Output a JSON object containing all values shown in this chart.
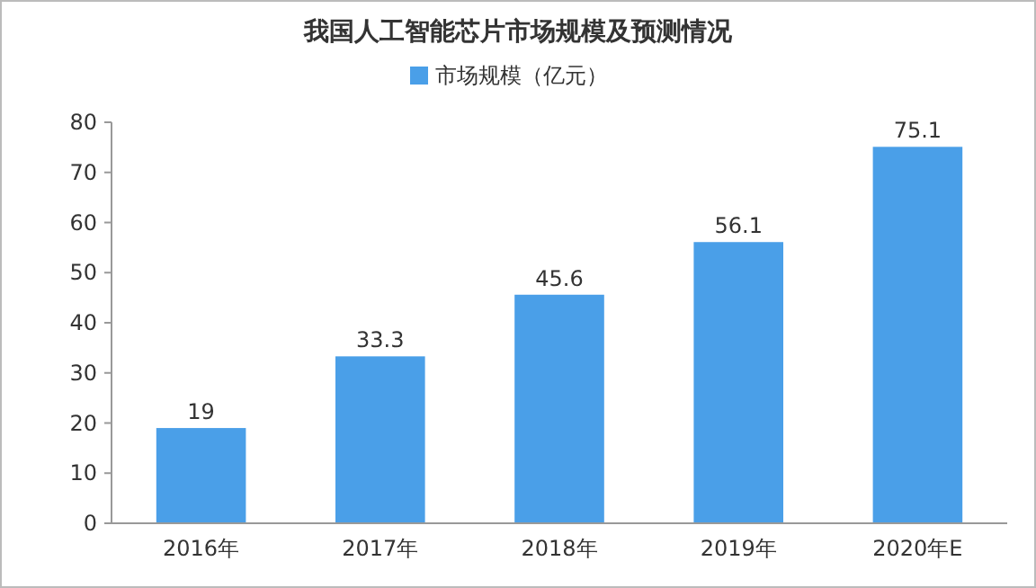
{
  "chart_data": {
    "type": "bar",
    "title": "我国人工智能芯片市场规模及预测情况",
    "categories": [
      "2016年",
      "2017年",
      "2018年",
      "2019年",
      "2020年E"
    ],
    "series": [
      {
        "name": "市场规模（亿元）",
        "color": "#4a9fe8",
        "values": [
          19,
          33.3,
          45.6,
          56.1,
          75.1
        ]
      }
    ],
    "ylim": [
      0,
      80
    ],
    "yticks": [
      0,
      10,
      20,
      30,
      40,
      50,
      60,
      70,
      80
    ],
    "legend": "top",
    "data_labels": true,
    "grid": false
  }
}
